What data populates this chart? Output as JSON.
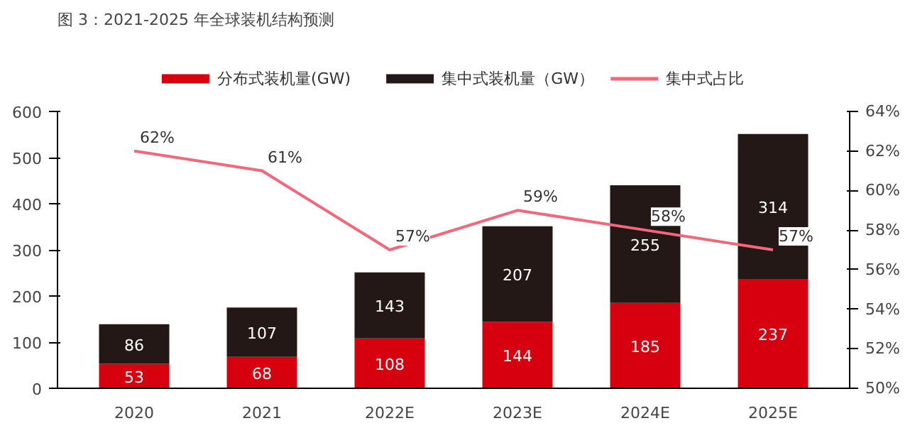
{
  "chart_data": {
    "type": "bar",
    "title": "图 3：2021-2025 年全球装机结构预测",
    "categories": [
      "2020",
      "2021",
      "2022E",
      "2023E",
      "2024E",
      "2025E"
    ],
    "stacked": true,
    "series": [
      {
        "name": "分布式装机量(GW)",
        "color": "#d7000f",
        "values": [
          53,
          68,
          108,
          144,
          185,
          237
        ],
        "value_labels": [
          "53",
          "68",
          "108",
          "144",
          "185",
          "237"
        ]
      },
      {
        "name": "集中式装机量（GW）",
        "color": "#231815",
        "values": [
          86,
          107,
          143,
          207,
          255,
          314
        ],
        "value_labels": [
          "86",
          "107",
          "143",
          "207",
          "255",
          "314"
        ]
      },
      {
        "name": "集中式占比",
        "type": "line",
        "axis": "y2",
        "color": "#f4677a",
        "values": [
          62,
          61,
          57,
          59,
          58,
          57
        ],
        "value_labels": [
          "62%",
          "61%",
          "57%",
          "59%",
          "58%",
          "57%"
        ]
      }
    ],
    "ylim": [
      0,
      600
    ],
    "yticks": [
      0,
      100,
      200,
      300,
      400,
      500,
      600
    ],
    "y2lim": [
      50,
      64
    ],
    "y2ticks": [
      {
        "value": 50,
        "label": "50%"
      },
      {
        "value": 52,
        "label": "52%"
      },
      {
        "value": 54,
        "label": "54%"
      },
      {
        "value": 56,
        "label": "56%"
      },
      {
        "value": 58,
        "label": "58%"
      },
      {
        "value": 60,
        "label": "60%"
      },
      {
        "value": 62,
        "label": "62%"
      },
      {
        "value": 64,
        "label": "64%"
      }
    ],
    "grid": false,
    "legend": "top",
    "marker": "none",
    "line_style": "solid"
  }
}
